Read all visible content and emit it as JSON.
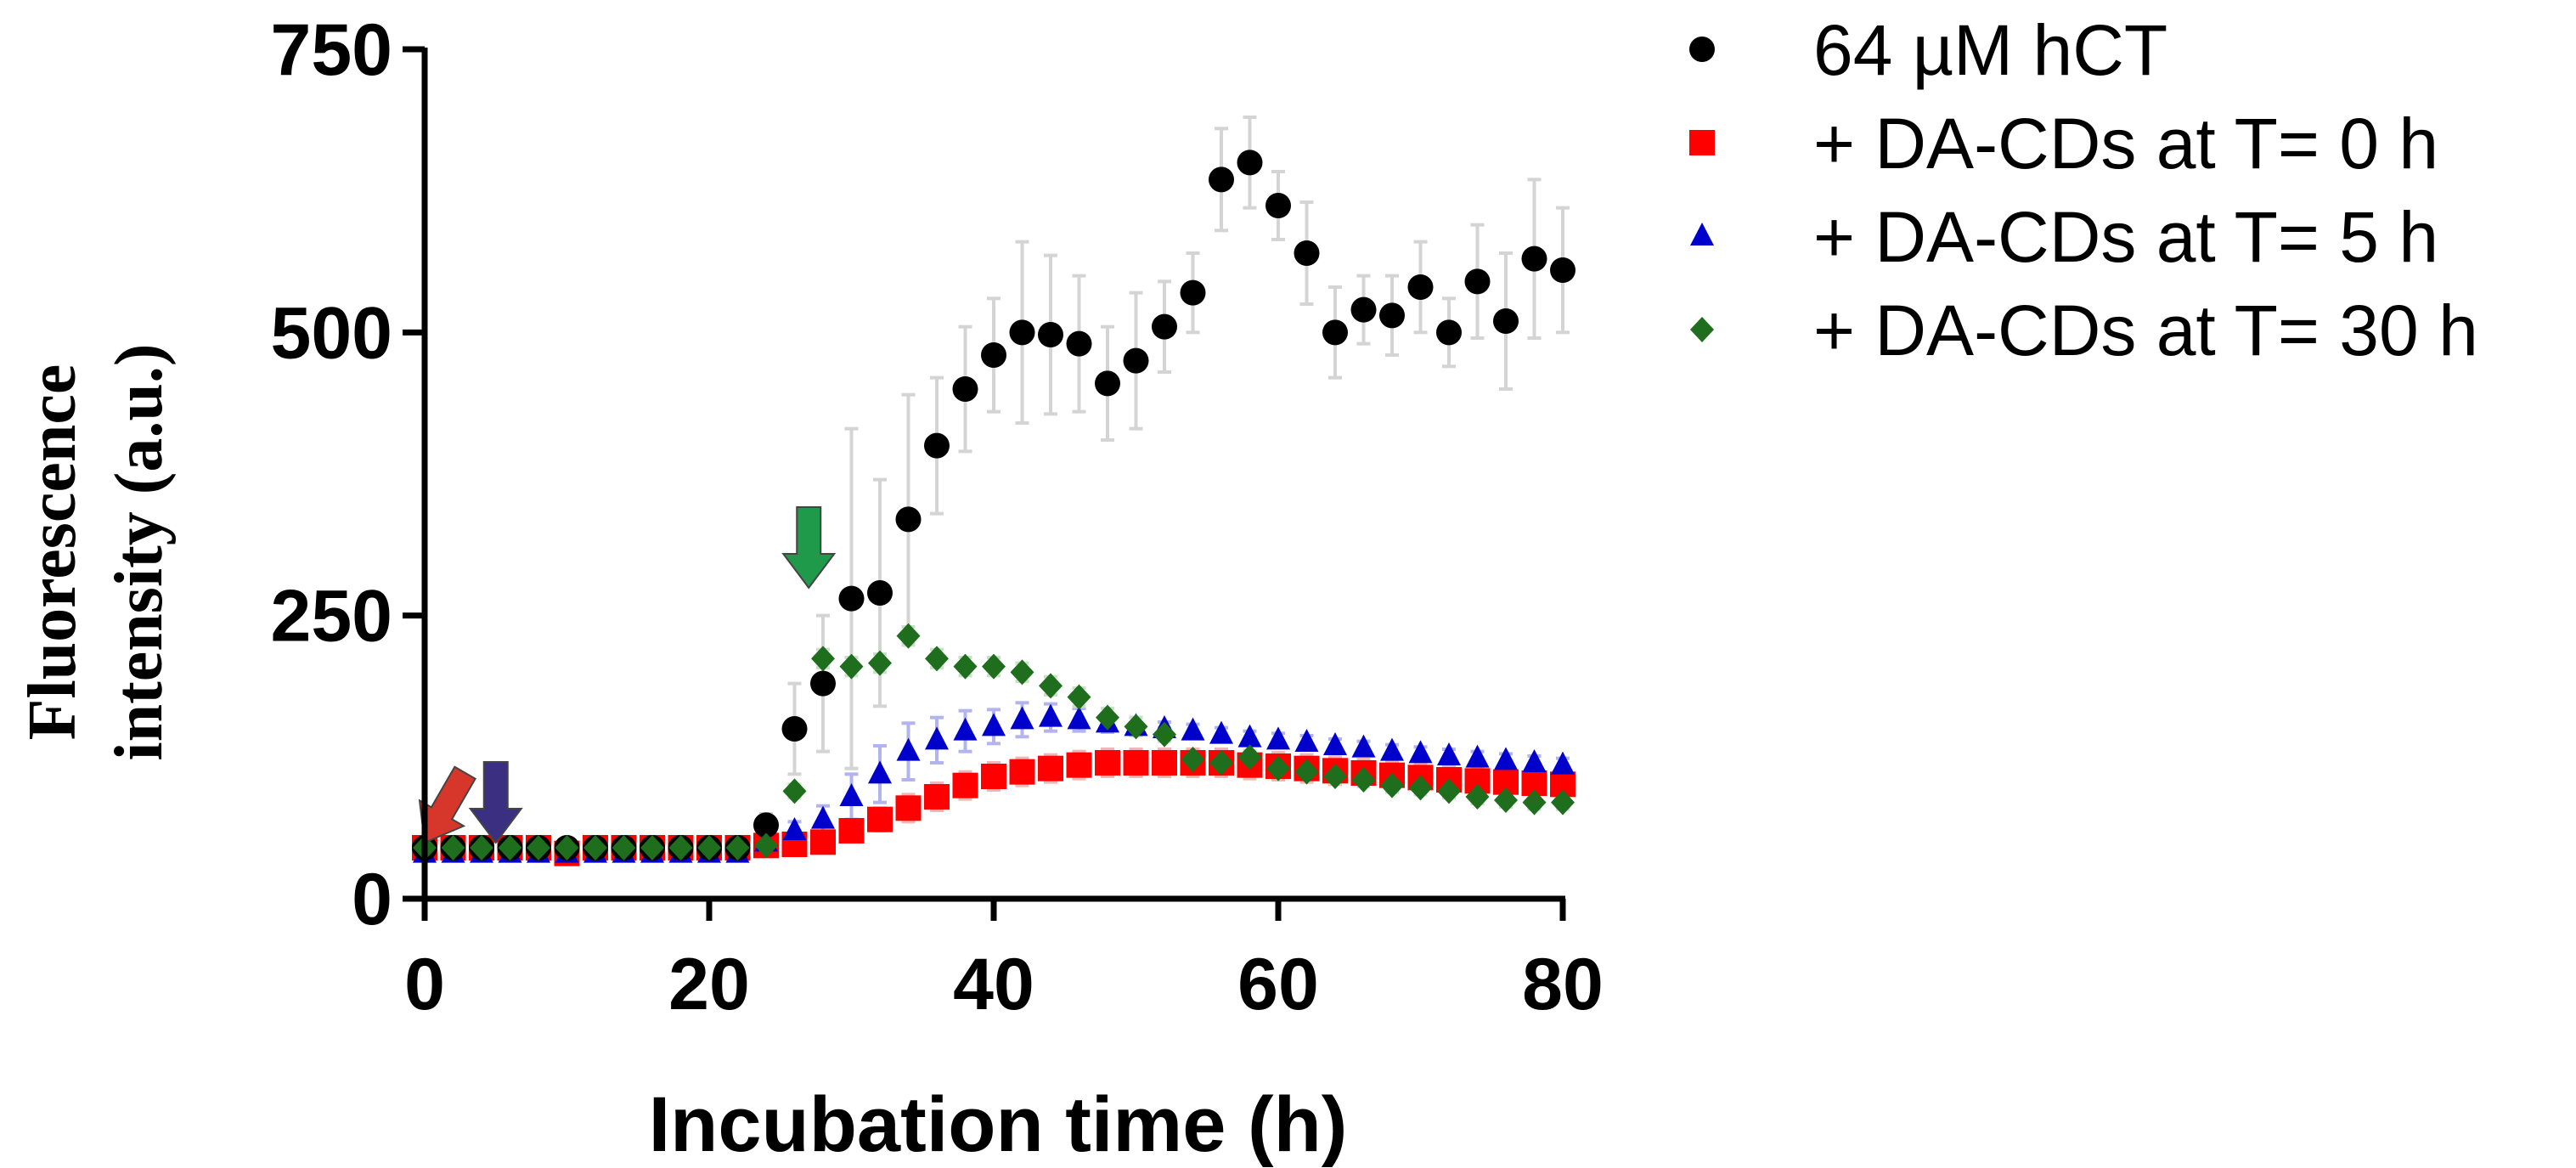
{
  "chart_data": {
    "type": "scatter",
    "title": "",
    "xlabel": "Incubation time (h)",
    "ylabel_lines": [
      "Fluorescence",
      "intensity  (a.u.)"
    ],
    "xlim": [
      0,
      80
    ],
    "ylim": [
      0,
      750
    ],
    "x_ticks": [
      0,
      20,
      40,
      60,
      80
    ],
    "y_ticks": [
      0,
      250,
      500,
      750
    ],
    "x_tick_labels": [
      "0",
      "20",
      "40",
      "60",
      "80"
    ],
    "y_tick_labels": [
      "0",
      "250",
      "500",
      "750"
    ],
    "grid": false,
    "legend_position": "top-right, outside plot",
    "series": [
      {
        "name": "64 µM hCT",
        "marker": "circle",
        "color": "#000000",
        "x": [
          0,
          2,
          4,
          6,
          8,
          10,
          12,
          14,
          16,
          18,
          20,
          22,
          24,
          26,
          28,
          30,
          32,
          34,
          36,
          38,
          40,
          42,
          44,
          46,
          48,
          50,
          52,
          54,
          56,
          58,
          60,
          62,
          64,
          66,
          68,
          70,
          72,
          74,
          76,
          78,
          80
        ],
        "y": [
          45,
          45,
          45,
          45,
          45,
          45,
          45,
          45,
          45,
          45,
          45,
          45,
          65,
          150,
          190,
          265,
          270,
          335,
          400,
          450,
          480,
          500,
          498,
          490,
          455,
          475,
          505,
          535,
          635,
          650,
          612,
          570,
          500,
          520,
          515,
          540,
          500,
          545,
          510,
          565,
          555
        ],
        "err": [
          5,
          5,
          5,
          5,
          5,
          5,
          5,
          5,
          5,
          5,
          5,
          5,
          10,
          40,
          60,
          150,
          100,
          110,
          60,
          55,
          50,
          80,
          70,
          60,
          50,
          60,
          40,
          35,
          45,
          40,
          30,
          45,
          40,
          30,
          35,
          40,
          30,
          50,
          60,
          70,
          55
        ]
      },
      {
        "name": "+ DA-CDs at T= 0 h",
        "marker": "square",
        "color": "#ff0000",
        "x": [
          0,
          2,
          4,
          6,
          8,
          10,
          12,
          14,
          16,
          18,
          20,
          22,
          24,
          26,
          28,
          30,
          32,
          34,
          36,
          38,
          40,
          42,
          44,
          46,
          48,
          50,
          52,
          54,
          56,
          58,
          60,
          62,
          64,
          66,
          68,
          70,
          72,
          74,
          76,
          78,
          80
        ],
        "y": [
          45,
          45,
          45,
          45,
          45,
          40,
          45,
          45,
          45,
          45,
          45,
          45,
          47,
          48,
          50,
          60,
          70,
          80,
          90,
          100,
          108,
          112,
          115,
          118,
          120,
          120,
          120,
          120,
          120,
          118,
          117,
          115,
          113,
          111,
          109,
          107,
          105,
          104,
          103,
          102,
          101
        ],
        "err": [
          5,
          5,
          5,
          5,
          5,
          5,
          5,
          5,
          5,
          5,
          5,
          5,
          5,
          5,
          5,
          8,
          10,
          12,
          12,
          12,
          12,
          12,
          12,
          12,
          12,
          12,
          12,
          12,
          12,
          12,
          12,
          12,
          12,
          12,
          12,
          12,
          12,
          12,
          12,
          12,
          12
        ]
      },
      {
        "name": "+ DA-CDs at T= 5 h",
        "marker": "triangle",
        "color": "#0000cc",
        "x": [
          0,
          2,
          4,
          6,
          8,
          10,
          12,
          14,
          16,
          18,
          20,
          22,
          24,
          26,
          28,
          30,
          32,
          34,
          36,
          38,
          40,
          42,
          44,
          46,
          48,
          50,
          52,
          54,
          56,
          58,
          60,
          62,
          64,
          66,
          68,
          70,
          72,
          74,
          76,
          78,
          80
        ],
        "y": [
          40,
          40,
          40,
          40,
          40,
          40,
          40,
          40,
          40,
          40,
          40,
          40,
          50,
          60,
          70,
          90,
          110,
          130,
          140,
          148,
          152,
          158,
          160,
          158,
          155,
          152,
          150,
          148,
          145,
          142,
          140,
          138,
          135,
          133,
          130,
          128,
          126,
          124,
          122,
          120,
          118
        ],
        "err": [
          4,
          4,
          4,
          4,
          4,
          4,
          4,
          4,
          4,
          4,
          4,
          4,
          6,
          8,
          12,
          20,
          25,
          25,
          20,
          18,
          15,
          15,
          12,
          10,
          8,
          8,
          6,
          6,
          6,
          6,
          6,
          6,
          6,
          6,
          6,
          6,
          6,
          6,
          6,
          6,
          6
        ]
      },
      {
        "name": "+ DA-CDs at T= 30 h",
        "marker": "diamond",
        "color": "#1e6e1e",
        "x": [
          0,
          2,
          4,
          6,
          8,
          10,
          12,
          14,
          16,
          18,
          20,
          22,
          24,
          26,
          28,
          30,
          32,
          34,
          36,
          38,
          40,
          42,
          44,
          46,
          48,
          50,
          52,
          54,
          56,
          58,
          60,
          62,
          64,
          66,
          68,
          70,
          72,
          74,
          76,
          78,
          80
        ],
        "y": [
          45,
          45,
          45,
          45,
          45,
          45,
          45,
          45,
          45,
          45,
          45,
          45,
          47,
          95,
          212,
          205,
          208,
          232,
          212,
          205,
          205,
          200,
          188,
          178,
          160,
          152,
          145,
          123,
          120,
          125,
          115,
          112,
          108,
          105,
          100,
          98,
          95,
          90,
          87,
          85,
          85
        ],
        "err": [
          4,
          4,
          4,
          4,
          4,
          4,
          4,
          4,
          4,
          4,
          4,
          4,
          4,
          6,
          8,
          8,
          8,
          8,
          8,
          8,
          8,
          8,
          8,
          8,
          8,
          8,
          6,
          6,
          6,
          6,
          6,
          6,
          6,
          6,
          6,
          6,
          6,
          6,
          6,
          6,
          6
        ]
      }
    ],
    "annotations": [
      {
        "kind": "arrow-down",
        "x": 0,
        "y": 45,
        "color": "#d7372a"
      },
      {
        "kind": "arrow-down",
        "x": 5,
        "y": 45,
        "color": "#3b2f82"
      },
      {
        "kind": "arrow-down",
        "x": 27,
        "y": 270,
        "color": "#1e9a4a"
      }
    ]
  }
}
